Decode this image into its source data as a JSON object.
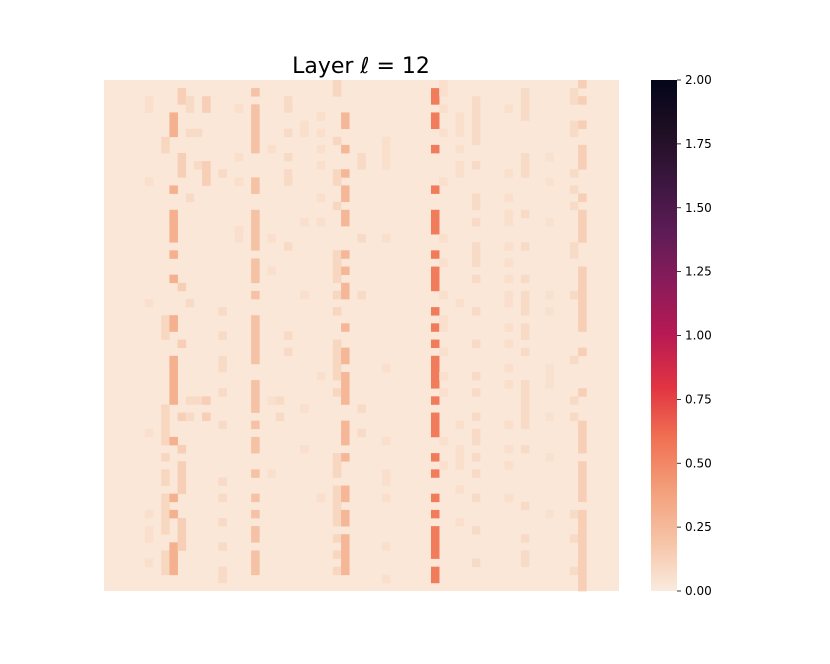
{
  "chart_data": {
    "type": "heatmap",
    "title": "Layer ℓ = 12",
    "xlabel": "",
    "ylabel": "",
    "grid": false,
    "colorbar": {
      "colormap": "rocket_r",
      "range": [
        0.0,
        2.0
      ],
      "ticks": [
        "0.00",
        "0.25",
        "0.50",
        "0.75",
        "1.00",
        "1.25",
        "1.50",
        "1.75",
        "2.00"
      ],
      "stops": [
        "#faebdd",
        "#f6c2a5",
        "#f39e79",
        "#f07052",
        "#e13342",
        "#b81a53",
        "#8b1b5a",
        "#5e1c56",
        "#3b163f",
        "#1f0f23",
        "#03051a"
      ]
    },
    "grid_size": {
      "rows": 63,
      "cols": 63
    },
    "baseline_value": 0.02,
    "columns": [
      {
        "col": 5,
        "value": 0.06,
        "rows": [
          2,
          3,
          12,
          27,
          43,
          53,
          55,
          56,
          59
        ]
      },
      {
        "col": 7,
        "value": 0.1,
        "rows": [
          7,
          8,
          29,
          30,
          31,
          40,
          41,
          42,
          43,
          44,
          46,
          48,
          49,
          51,
          52,
          53,
          54,
          55,
          58,
          59,
          60
        ]
      },
      {
        "col": 8,
        "value": 0.3,
        "rows": [
          4,
          5,
          6,
          13,
          16,
          17,
          18,
          19,
          21,
          24,
          29,
          30,
          34,
          35,
          36,
          37,
          38,
          39,
          44,
          51,
          53,
          57,
          58,
          59,
          60
        ]
      },
      {
        "col": 9,
        "value": 0.14,
        "rows": [
          1,
          2,
          9,
          10,
          11,
          25,
          32,
          41,
          45,
          47,
          48,
          49,
          50,
          54,
          55,
          56,
          57
        ]
      },
      {
        "col": 10,
        "value": 0.08,
        "rows": [
          2,
          3,
          6,
          14,
          27,
          39,
          41
        ]
      },
      {
        "col": 11,
        "value": 0.08,
        "rows": [
          6,
          10,
          39
        ]
      },
      {
        "col": 12,
        "value": 0.14,
        "rows": [
          2,
          3,
          10,
          11,
          12,
          39,
          41
        ]
      },
      {
        "col": 14,
        "value": 0.08,
        "rows": [
          11,
          28,
          31,
          34,
          35,
          38,
          42,
          49,
          51,
          54,
          57,
          60,
          61
        ]
      },
      {
        "col": 16,
        "value": 0.06,
        "rows": [
          3,
          9,
          12,
          18,
          19
        ]
      },
      {
        "col": 18,
        "value": 0.2,
        "rows": [
          1,
          3,
          4,
          5,
          6,
          7,
          8,
          12,
          13,
          16,
          17,
          18,
          19,
          20,
          22,
          23,
          24,
          26,
          29,
          30,
          31,
          32,
          33,
          34,
          37,
          38,
          39,
          40,
          42,
          44,
          45,
          48,
          51,
          53,
          55,
          56,
          58,
          59,
          60
        ]
      },
      {
        "col": 20,
        "value": 0.06,
        "rows": [
          8,
          19,
          23,
          39,
          48
        ]
      },
      {
        "col": 21,
        "value": 0.08,
        "rows": [
          39,
          41
        ]
      },
      {
        "col": 22,
        "value": 0.08,
        "rows": [
          2,
          3,
          6,
          9,
          11,
          12,
          20,
          31,
          33
        ]
      },
      {
        "col": 24,
        "value": 0.06,
        "rows": [
          5,
          6,
          17,
          26,
          40,
          45
        ]
      },
      {
        "col": 26,
        "value": 0.06,
        "rows": [
          4,
          6,
          8,
          10,
          14,
          17,
          36,
          51
        ]
      },
      {
        "col": 28,
        "value": 0.1,
        "rows": [
          0,
          1,
          7,
          11,
          12,
          15,
          21,
          22,
          23,
          24,
          26,
          28,
          32,
          33,
          34,
          35,
          36,
          38,
          46,
          47,
          48,
          50,
          51,
          52,
          53,
          54,
          56,
          58,
          60
        ]
      },
      {
        "col": 29,
        "value": 0.26,
        "rows": [
          4,
          5,
          8,
          11,
          13,
          14,
          16,
          17,
          21,
          23,
          25,
          26,
          30,
          33,
          34,
          36,
          37,
          38,
          39,
          42,
          43,
          44,
          46,
          50,
          51,
          53,
          54,
          56,
          57,
          58,
          59,
          60
        ]
      },
      {
        "col": 31,
        "value": 0.08,
        "rows": [
          9,
          10,
          19,
          26,
          40,
          43
        ]
      },
      {
        "col": 34,
        "value": 0.06,
        "rows": [
          7,
          8,
          9,
          10,
          19,
          35,
          44,
          48,
          49,
          51,
          57,
          61
        ]
      },
      {
        "col": 40,
        "value": 0.55,
        "rows": [
          1,
          2,
          4,
          5,
          8,
          13,
          16,
          17,
          18,
          21,
          23,
          24,
          25,
          28,
          30,
          32,
          34,
          35,
          36,
          37,
          39,
          41,
          42,
          43,
          46,
          48,
          51,
          53,
          55,
          56,
          57,
          58,
          60,
          61
        ]
      },
      {
        "col": 41,
        "value": 0.06,
        "rows": [
          0,
          1,
          3,
          6,
          12,
          19,
          22,
          26,
          29,
          30,
          33,
          36,
          38,
          44,
          47
        ]
      },
      {
        "col": 43,
        "value": 0.06,
        "rows": [
          4,
          5,
          6,
          8,
          10,
          11,
          27,
          42,
          45,
          46,
          47,
          50,
          54
        ]
      },
      {
        "col": 45,
        "value": 0.08,
        "rows": [
          2,
          3,
          4,
          5,
          6,
          7,
          10,
          14,
          15,
          17,
          20,
          21,
          22,
          24,
          28,
          32,
          36,
          38,
          41,
          43,
          44,
          46,
          48,
          51,
          55,
          59
        ]
      },
      {
        "col": 49,
        "value": 0.06,
        "rows": [
          3,
          11,
          14,
          16,
          17,
          20,
          22,
          24,
          26,
          27,
          30,
          32,
          35,
          37,
          42,
          45,
          47,
          51
        ]
      },
      {
        "col": 51,
        "value": 0.08,
        "rows": [
          1,
          2,
          3,
          4,
          9,
          10,
          11,
          16,
          20,
          24,
          26,
          27,
          28,
          30,
          31,
          33,
          37,
          38,
          39,
          40,
          41,
          42,
          45,
          52,
          56,
          58,
          59
        ]
      },
      {
        "col": 54,
        "value": 0.05,
        "rows": [
          9,
          12,
          17,
          26,
          28,
          35,
          36,
          37,
          41,
          46,
          53
        ]
      },
      {
        "col": 57,
        "value": 0.08,
        "rows": [
          1,
          2,
          5,
          6,
          11,
          13,
          15,
          20,
          21,
          26,
          34,
          39,
          41,
          53,
          56,
          60
        ]
      },
      {
        "col": 58,
        "value": 0.14,
        "rows": [
          0,
          2,
          5,
          8,
          9,
          10,
          14,
          16,
          17,
          18,
          19,
          23,
          24,
          25,
          26,
          27,
          28,
          29,
          30,
          33,
          38,
          42,
          43,
          44,
          45,
          47,
          48,
          49,
          50,
          51,
          53,
          54,
          55,
          56,
          57,
          58,
          59,
          60,
          61,
          62
        ]
      }
    ]
  }
}
